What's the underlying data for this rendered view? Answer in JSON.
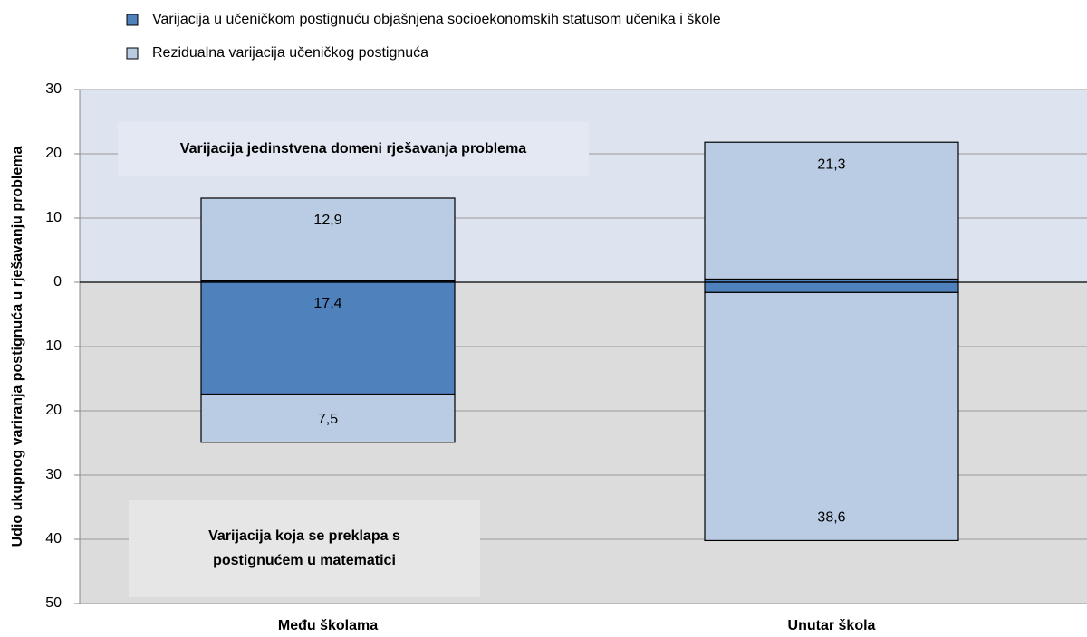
{
  "chart_data": {
    "type": "diverging-stacked-bar",
    "ylabel": "Udio ukupnog variranja postignuća u rješavanju problema",
    "categories": [
      "Među školama",
      "Unutar škola"
    ],
    "ylim": [
      -50,
      30
    ],
    "yticks": [
      30,
      20,
      10,
      0,
      {
        "value": -10,
        "label": "10"
      },
      {
        "value": -20,
        "label": "20"
      },
      {
        "value": -30,
        "label": "30"
      },
      {
        "value": -40,
        "label": "40"
      },
      {
        "value": -50,
        "label": "50"
      }
    ],
    "grid": true,
    "series": [
      {
        "name": "Varijacija u učeničkom postignuću objašnjena socioekonomskih statusom učenika i škole",
        "color": "#4f81bd",
        "values": [
          0.2,
          0.5
        ],
        "value_labels": [
          "0,2",
          "0,5"
        ],
        "below": [
          -17.4,
          -1.6
        ],
        "below_labels": [
          "17,4",
          "1,6"
        ]
      },
      {
        "name": "Rezidualna varijacija učeničkog postignuća",
        "color": "#b9cce4",
        "values": [
          12.9,
          21.3
        ],
        "value_labels": [
          "12,9",
          "21,3"
        ],
        "below": [
          -7.5,
          -38.6
        ],
        "below_labels": [
          "7,5",
          "38,6"
        ]
      }
    ],
    "annotations": [
      "Varijacija jedinstvena domeni rješavanja problema",
      "Varijacija koja se preklapa s",
      "postignućem u matematici"
    ]
  }
}
